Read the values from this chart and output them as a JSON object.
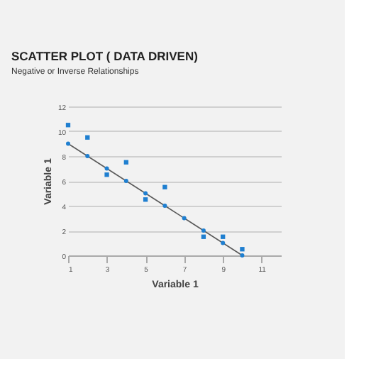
{
  "chart_data": {
    "type": "scatter",
    "title": "SCATTER PLOT ( DATA DRIVEN)",
    "subtitle": "Negative or Inverse Relationships",
    "xlabel": "Variable 1",
    "ylabel": "Variable 1",
    "x": [
      1,
      2,
      3,
      4,
      5,
      6,
      8,
      9,
      10
    ],
    "series": [
      {
        "color": "#1f7fd0",
        "marker": "square",
        "values": [
          10.5,
          9.5,
          6.5,
          7.5,
          4.5,
          5.5,
          1.5,
          1.5,
          0.5
        ]
      },
      {
        "type": "line",
        "color": "#5a5a5a",
        "marker": "circle",
        "x": [
          1,
          2,
          3,
          4,
          5,
          6,
          7,
          8,
          9,
          10
        ],
        "values": [
          9,
          8,
          7,
          6,
          5,
          4,
          3,
          2,
          1,
          0
        ]
      }
    ],
    "xlim": [
      1,
      12
    ],
    "xticks": [
      1,
      3,
      5,
      7,
      9,
      11
    ],
    "ylim": [
      0,
      12
    ],
    "yticks": [
      0,
      2,
      4,
      6,
      8,
      10,
      12
    ],
    "grid": "y"
  }
}
